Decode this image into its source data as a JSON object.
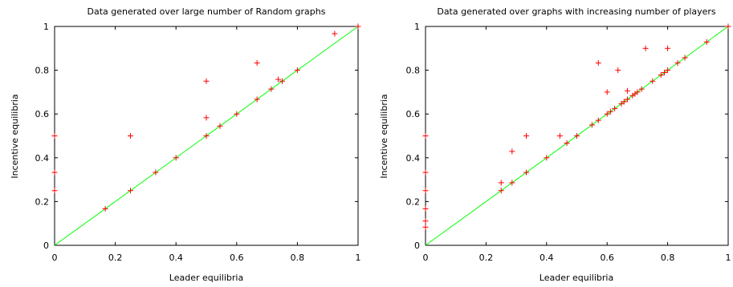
{
  "chart_data": [
    {
      "type": "scatter",
      "title": "Data generated over large number of Random graphs",
      "xlabel": "Leader equilibria",
      "ylabel": "Incentive equilibria",
      "xlim": [
        0,
        1
      ],
      "ylim": [
        0,
        1
      ],
      "xticks": [
        "0",
        "0.2",
        "0.4",
        "0.6",
        "0.8",
        "1"
      ],
      "yticks": [
        "0",
        "0.2",
        "0.4",
        "0.6",
        "0.8",
        "1"
      ],
      "grid": false,
      "reference_line": {
        "from": [
          0,
          0
        ],
        "to": [
          1,
          1
        ],
        "color": "#00ff00"
      },
      "series": [
        {
          "color": "#ff0000",
          "marker": "+",
          "points": [
            [
              0,
              0.5
            ],
            [
              0,
              0.333
            ],
            [
              0,
              0.25
            ],
            [
              0.167,
              0.167
            ],
            [
              0.25,
              0.25
            ],
            [
              0.25,
              0.5
            ],
            [
              0.333,
              0.333
            ],
            [
              0.4,
              0.4
            ],
            [
              0.5,
              0.5
            ],
            [
              0.5,
              0.583
            ],
            [
              0.5,
              0.75
            ],
            [
              0.545,
              0.545
            ],
            [
              0.6,
              0.6
            ],
            [
              0.667,
              0.667
            ],
            [
              0.667,
              0.833
            ],
            [
              0.714,
              0.714
            ],
            [
              0.737,
              0.758
            ],
            [
              0.75,
              0.75
            ],
            [
              0.8,
              0.8
            ],
            [
              0.923,
              0.967
            ],
            [
              1,
              1
            ]
          ]
        }
      ]
    },
    {
      "type": "scatter",
      "title": "Data generated over graphs with increasing number of players",
      "xlabel": "Leader equilibria",
      "ylabel": "Incentive equilibria",
      "xlim": [
        0,
        1
      ],
      "ylim": [
        0,
        1
      ],
      "xticks": [
        "0",
        "0.2",
        "0.4",
        "0.6",
        "0.8",
        "1"
      ],
      "yticks": [
        "0",
        "0.2",
        "0.4",
        "0.6",
        "0.8",
        "1"
      ],
      "grid": false,
      "reference_line": {
        "from": [
          0,
          0
        ],
        "to": [
          1,
          1
        ],
        "color": "#00ff00"
      },
      "series": [
        {
          "color": "#ff0000",
          "marker": "+",
          "points": [
            [
              0,
              0.5
            ],
            [
              0,
              0.333
            ],
            [
              0,
              0.25
            ],
            [
              0,
              0.167
            ],
            [
              0,
              0.111
            ],
            [
              0,
              0.083
            ],
            [
              0.25,
              0.25
            ],
            [
              0.25,
              0.286
            ],
            [
              0.286,
              0.286
            ],
            [
              0.286,
              0.429
            ],
            [
              0.333,
              0.333
            ],
            [
              0.333,
              0.5
            ],
            [
              0.4,
              0.4
            ],
            [
              0.444,
              0.5
            ],
            [
              0.467,
              0.467
            ],
            [
              0.5,
              0.5
            ],
            [
              0.55,
              0.55
            ],
            [
              0.571,
              0.571
            ],
            [
              0.571,
              0.833
            ],
            [
              0.6,
              0.6
            ],
            [
              0.6,
              0.7
            ],
            [
              0.611,
              0.611
            ],
            [
              0.625,
              0.625
            ],
            [
              0.636,
              0.8
            ],
            [
              0.647,
              0.647
            ],
            [
              0.656,
              0.656
            ],
            [
              0.667,
              0.667
            ],
            [
              0.667,
              0.706
            ],
            [
              0.684,
              0.684
            ],
            [
              0.692,
              0.692
            ],
            [
              0.7,
              0.7
            ],
            [
              0.714,
              0.714
            ],
            [
              0.727,
              0.9
            ],
            [
              0.75,
              0.75
            ],
            [
              0.778,
              0.778
            ],
            [
              0.789,
              0.789
            ],
            [
              0.8,
              0.8
            ],
            [
              0.8,
              0.9
            ],
            [
              0.833,
              0.833
            ],
            [
              0.857,
              0.857
            ],
            [
              0.929,
              0.929
            ],
            [
              1,
              1
            ]
          ]
        }
      ]
    }
  ]
}
